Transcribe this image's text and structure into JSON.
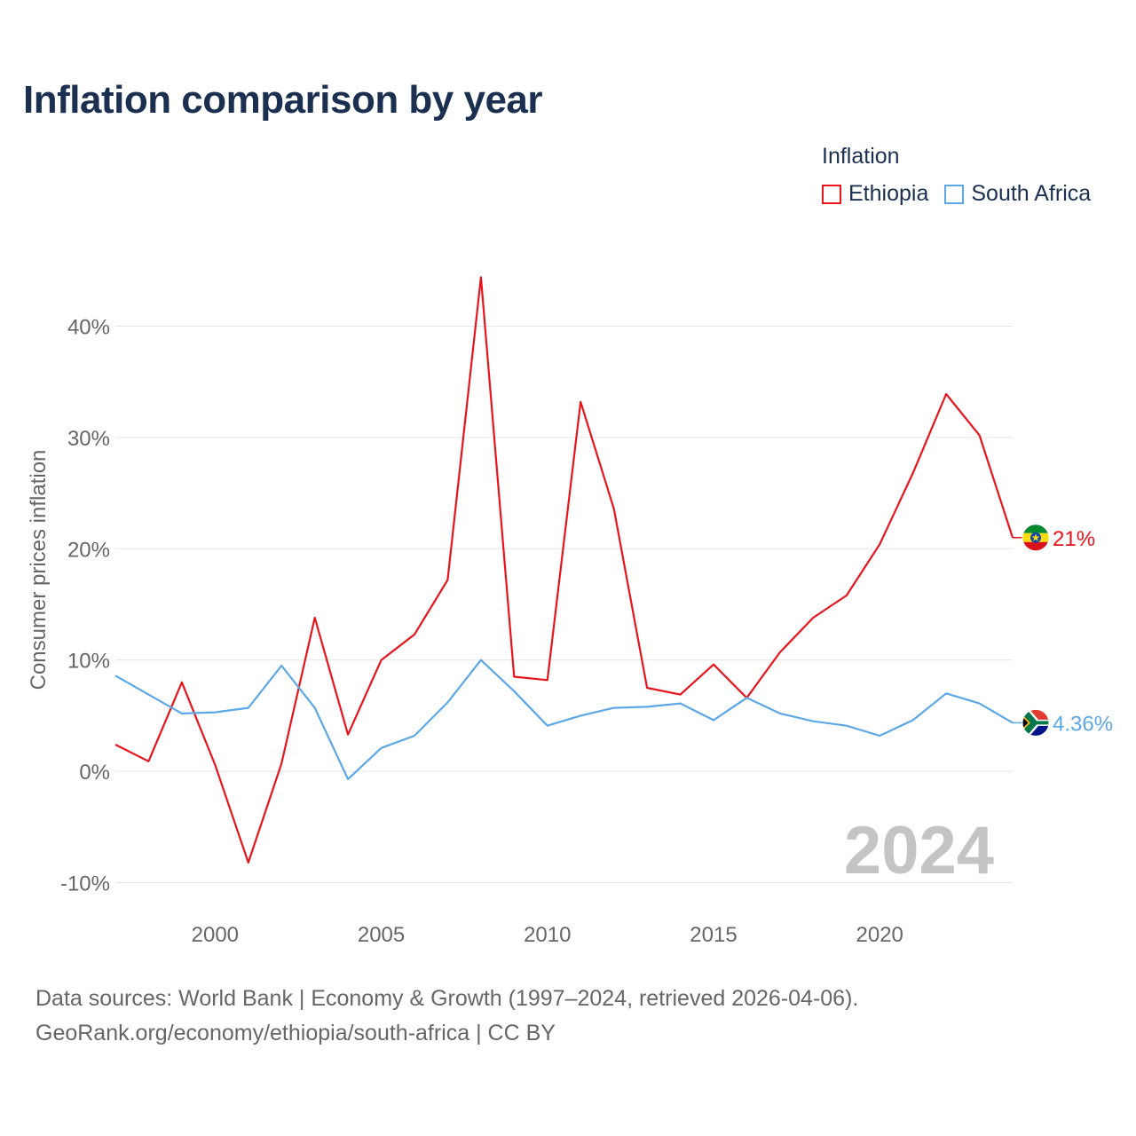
{
  "title": "Inflation comparison by year",
  "legend": {
    "title": "Inflation",
    "items": [
      {
        "label": "Ethiopia",
        "color": "#e8141c"
      },
      {
        "label": "South Africa",
        "color": "#5ca7e6"
      }
    ]
  },
  "year_watermark": "2024",
  "footer": {
    "line1": "Data sources: World Bank | Economy & Growth (1997–2024, retrieved 2026-04-06).",
    "line2": "GeoRank.org/economy/ethiopia/south-africa | CC BY"
  },
  "chart_data": {
    "type": "line",
    "title": "Inflation comparison by year",
    "xlabel": "",
    "ylabel": "Consumer prices inflation",
    "xlim": [
      1997,
      2024
    ],
    "ylim": [
      -10,
      45
    ],
    "xticks": [
      2000,
      2005,
      2010,
      2015,
      2020
    ],
    "yticks": [
      {
        "value": -10,
        "label": "-10%"
      },
      {
        "value": 0,
        "label": "0%"
      },
      {
        "value": 10,
        "label": "10%"
      },
      {
        "value": 20,
        "label": "20%"
      },
      {
        "value": 30,
        "label": "30%"
      },
      {
        "value": 40,
        "label": "40%"
      }
    ],
    "grid": true,
    "legend_position": "top-right",
    "x": [
      1997,
      1998,
      1999,
      2000,
      2001,
      2002,
      2003,
      2004,
      2005,
      2006,
      2007,
      2008,
      2009,
      2010,
      2011,
      2012,
      2013,
      2014,
      2015,
      2016,
      2017,
      2018,
      2019,
      2020,
      2021,
      2022,
      2023,
      2024
    ],
    "series": [
      {
        "name": "Ethiopia",
        "color": "#e8141c",
        "values": [
          2.4,
          0.9,
          8.0,
          0.6,
          -8.2,
          0.7,
          13.8,
          3.3,
          10.0,
          12.3,
          17.2,
          44.4,
          8.5,
          8.2,
          33.2,
          23.6,
          7.5,
          6.9,
          9.6,
          6.6,
          10.7,
          13.8,
          15.8,
          20.4,
          26.8,
          33.9,
          30.2,
          21.0
        ],
        "end_label": "21%",
        "flag": "ethiopia-flag"
      },
      {
        "name": "South Africa",
        "color": "#5ca7e6",
        "values": [
          8.6,
          6.9,
          5.2,
          5.3,
          5.7,
          9.5,
          5.7,
          -0.7,
          2.1,
          3.2,
          6.2,
          10.0,
          7.2,
          4.1,
          5.0,
          5.7,
          5.8,
          6.1,
          4.6,
          6.6,
          5.2,
          4.5,
          4.1,
          3.2,
          4.6,
          7.0,
          6.1,
          4.36
        ],
        "end_label": "4.36%",
        "flag": "south-africa-flag"
      }
    ]
  }
}
